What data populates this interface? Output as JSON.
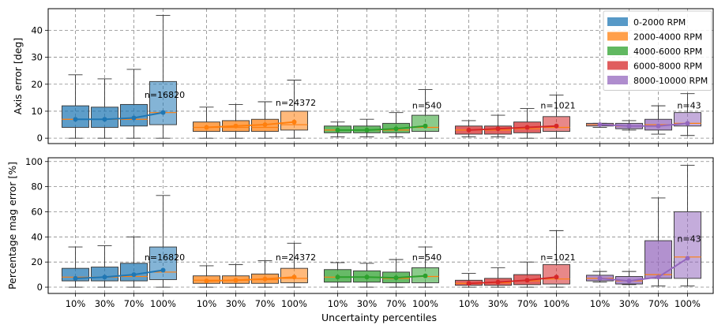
{
  "figure": {
    "xlabel": "Uncertainty percentiles"
  },
  "chart_data": [
    {
      "type": "box",
      "ylabel": "Axis error [deg]",
      "ylim": [
        -2,
        48
      ],
      "yticks": [
        0,
        10,
        20,
        30,
        40
      ],
      "grid": true,
      "legend_placement": "top-right",
      "categories": [
        "10%",
        "30%",
        "70%",
        "100%"
      ],
      "series": [
        {
          "name": "0-2000 RPM",
          "color": "#1f77b4",
          "n_label": "n=16820",
          "boxes": [
            {
              "low": 0,
              "q1": 4,
              "median": 7,
              "q3": 12,
              "high": 23.5
            },
            {
              "low": 0,
              "q1": 4,
              "median": 7,
              "q3": 11.5,
              "high": 22
            },
            {
              "low": 0,
              "q1": 4.5,
              "median": 7,
              "q3": 12.5,
              "high": 25.5
            },
            {
              "low": 0,
              "q1": 5,
              "median": 9.5,
              "q3": 21,
              "high": 45.5
            }
          ],
          "means": [
            7,
            7,
            7.5,
            9.5
          ]
        },
        {
          "name": "2000-4000 RPM",
          "color": "#ff7f0e",
          "n_label": "n=24372",
          "boxes": [
            {
              "low": 0,
              "q1": 2.5,
              "median": 4,
              "q3": 6,
              "high": 11.5
            },
            {
              "low": 0,
              "q1": 2.5,
              "median": 4,
              "q3": 6.5,
              "high": 12.5
            },
            {
              "low": 0,
              "q1": 2.5,
              "median": 4,
              "q3": 7,
              "high": 13.5
            },
            {
              "low": 0,
              "q1": 3,
              "median": 5,
              "q3": 10,
              "high": 21.5
            }
          ],
          "means": [
            4,
            4.5,
            5,
            6
          ]
        },
        {
          "name": "4000-6000 RPM",
          "color": "#2ca02c",
          "n_label": "n=540",
          "boxes": [
            {
              "low": 0.5,
              "q1": 2,
              "median": 3,
              "q3": 4.5,
              "high": 6
            },
            {
              "low": 0.5,
              "q1": 2,
              "median": 3,
              "q3": 4.5,
              "high": 7
            },
            {
              "low": 0.5,
              "q1": 2,
              "median": 3,
              "q3": 5.5,
              "high": 9.5
            },
            {
              "low": 0,
              "q1": 2.5,
              "median": 4,
              "q3": 8.5,
              "high": 18
            }
          ],
          "means": [
            3,
            3,
            3.5,
            4.5
          ]
        },
        {
          "name": "6000-8000 RPM",
          "color": "#d62728",
          "n_label": "n=1021",
          "boxes": [
            {
              "low": 0.5,
              "q1": 1.5,
              "median": 3,
              "q3": 4.5,
              "high": 6.5
            },
            {
              "low": 0.5,
              "q1": 1.5,
              "median": 3,
              "q3": 4.5,
              "high": 8.5
            },
            {
              "low": 0,
              "q1": 2,
              "median": 3.5,
              "q3": 6,
              "high": 11
            },
            {
              "low": 0,
              "q1": 2.5,
              "median": 4,
              "q3": 8,
              "high": 16
            }
          ],
          "means": [
            3,
            3.5,
            4,
            4.5
          ]
        },
        {
          "name": "8000-10000 RPM",
          "color": "#9467bd",
          "n_label": "n=43",
          "boxes": [
            {
              "low": 4,
              "q1": 4.5,
              "median": 5,
              "q3": 5.5,
              "high": 5.5
            },
            {
              "low": 3,
              "q1": 3.5,
              "median": 4.5,
              "q3": 5.5,
              "high": 6.5
            },
            {
              "low": 1.5,
              "q1": 3,
              "median": 5,
              "q3": 7,
              "high": 12
            },
            {
              "low": 1,
              "q1": 4.5,
              "median": 5.5,
              "q3": 9.5,
              "high": 16.5
            }
          ],
          "means": [
            5,
            4.5,
            4.5,
            5.5
          ]
        }
      ]
    },
    {
      "type": "box",
      "ylabel": "Percentage mag error [%]",
      "ylim": [
        -5,
        103
      ],
      "yticks": [
        0,
        20,
        40,
        60,
        80,
        100
      ],
      "grid": true,
      "categories": [
        "10%",
        "30%",
        "70%",
        "100%"
      ],
      "series": [
        {
          "name": "0-2000 RPM",
          "color": "#1f77b4",
          "n_label": "n=16820",
          "boxes": [
            {
              "low": 0,
              "q1": 5,
              "median": 8,
              "q3": 15,
              "high": 32
            },
            {
              "low": 0,
              "q1": 5,
              "median": 8,
              "q3": 16,
              "high": 33
            },
            {
              "low": 0,
              "q1": 5,
              "median": 8.5,
              "q3": 19,
              "high": 40
            },
            {
              "low": 0,
              "q1": 6,
              "median": 12,
              "q3": 32,
              "high": 73
            }
          ],
          "means": [
            7,
            8,
            10,
            13.5
          ]
        },
        {
          "name": "2000-4000 RPM",
          "color": "#ff7f0e",
          "n_label": "n=24372",
          "boxes": [
            {
              "low": 0,
              "q1": 3,
              "median": 5.5,
              "q3": 9,
              "high": 17
            },
            {
              "low": 0,
              "q1": 3,
              "median": 5.5,
              "q3": 9,
              "high": 18
            },
            {
              "low": 0,
              "q1": 3,
              "median": 6,
              "q3": 10.5,
              "high": 21
            },
            {
              "low": 0,
              "q1": 3.5,
              "median": 7,
              "q3": 15,
              "high": 35
            }
          ],
          "means": [
            5,
            5.5,
            6.5,
            8
          ]
        },
        {
          "name": "4000-6000 RPM",
          "color": "#2ca02c",
          "n_label": "n=540",
          "boxes": [
            {
              "low": 0,
              "q1": 4,
              "median": 8,
              "q3": 14,
              "high": 19.5
            },
            {
              "low": 0,
              "q1": 4,
              "median": 8,
              "q3": 13,
              "high": 19
            },
            {
              "low": 0,
              "q1": 3.5,
              "median": 7,
              "q3": 12,
              "high": 22
            },
            {
              "low": 0,
              "q1": 3.5,
              "median": 8.5,
              "q3": 15.5,
              "high": 32
            }
          ],
          "means": [
            8,
            8,
            7.5,
            9
          ]
        },
        {
          "name": "6000-8000 RPM",
          "color": "#d62728",
          "n_label": "n=1021",
          "boxes": [
            {
              "low": 0,
              "q1": 1.5,
              "median": 3,
              "q3": 5.5,
              "high": 11
            },
            {
              "low": 0,
              "q1": 1.5,
              "median": 3.5,
              "q3": 7,
              "high": 15.5
            },
            {
              "low": 0,
              "q1": 2,
              "median": 5,
              "q3": 10,
              "high": 20
            },
            {
              "low": 0,
              "q1": 2.5,
              "median": 6.5,
              "q3": 18,
              "high": 45
            }
          ],
          "means": [
            3,
            4,
            5.5,
            8
          ]
        },
        {
          "name": "8000-10000 RPM",
          "color": "#9467bd",
          "n_label": "n=43",
          "boxes": [
            {
              "low": 4,
              "q1": 5,
              "median": 7,
              "q3": 9.5,
              "high": 12.5
            },
            {
              "low": 2,
              "q1": 2.5,
              "median": 5,
              "q3": 8.5,
              "high": 12.5
            },
            {
              "low": 1,
              "q1": 7,
              "median": 10,
              "q3": 37,
              "high": 71
            },
            {
              "low": 1,
              "q1": 7,
              "median": 24,
              "q3": 60,
              "high": 97
            }
          ],
          "means": [
            7,
            5,
            8,
            23
          ]
        }
      ]
    }
  ]
}
